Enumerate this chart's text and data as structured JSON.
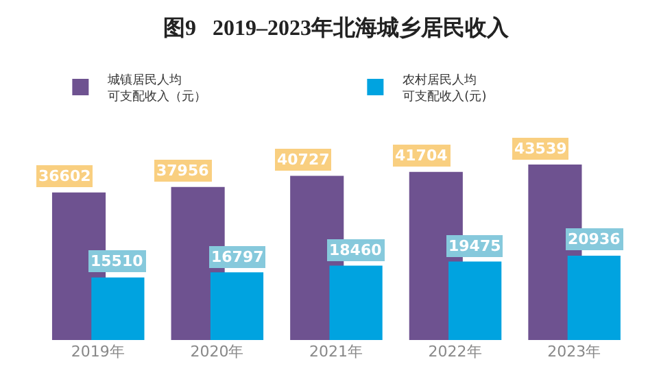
{
  "chart_data": {
    "type": "bar",
    "title": "图9   2019–2023年北海城乡居民收入",
    "categories": [
      "2019年",
      "2020年",
      "2021年",
      "2022年",
      "2023年"
    ],
    "series": [
      {
        "name": "城镇居民人均可支配收入（元）",
        "color": "#6e5290",
        "values": [
          36602,
          37956,
          40727,
          41704,
          43539
        ]
      },
      {
        "name": "农村居民人均可支配收入(元)",
        "color": "#00a3e0",
        "values": [
          15510,
          16797,
          18460,
          19475,
          20936
        ]
      }
    ],
    "data_labels": true,
    "legend": "top"
  }
}
